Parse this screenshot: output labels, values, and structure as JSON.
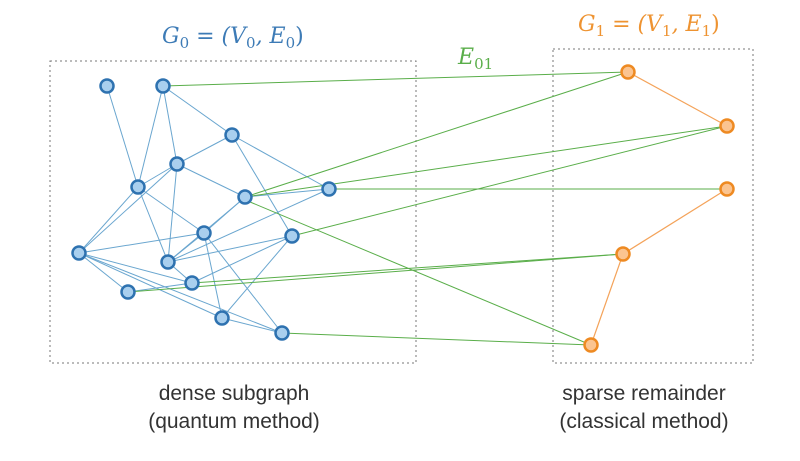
{
  "colors": {
    "g0_node_fill": "#a9cfee",
    "g0_node_stroke": "#2e72b0",
    "g0_edge": "#6aa6cf",
    "g0_label": "#3d7bb6",
    "g1_node_fill": "#fbc490",
    "g1_node_stroke": "#ee8a22",
    "g1_edge": "#f4a35a",
    "g1_label": "#ee9331",
    "cross_edge": "#5aae4a",
    "box": "#777777"
  },
  "graph0": {
    "label": {
      "base": "G",
      "sub": "0",
      "rest": " = (V",
      "vsub": "0",
      "mid": ", E",
      "esub": "0",
      "end": ")"
    },
    "caption": {
      "line1": "dense subgraph",
      "line2": "(quantum method)"
    },
    "nodes": [
      {
        "id": "a0"
      },
      {
        "id": "a1"
      },
      {
        "id": "a2"
      },
      {
        "id": "a3"
      },
      {
        "id": "a4"
      },
      {
        "id": "a5"
      },
      {
        "id": "a6"
      },
      {
        "id": "a7"
      },
      {
        "id": "a8"
      },
      {
        "id": "a9"
      },
      {
        "id": "a10"
      },
      {
        "id": "a11"
      },
      {
        "id": "a12"
      },
      {
        "id": "a13"
      },
      {
        "id": "a14"
      },
      {
        "id": "a15"
      }
    ],
    "edges": [
      [
        "a0",
        "a3"
      ],
      [
        "a1",
        "a2"
      ],
      [
        "a1",
        "a3"
      ],
      [
        "a1",
        "a4"
      ],
      [
        "a2",
        "a4"
      ],
      [
        "a2",
        "a7"
      ],
      [
        "a2",
        "a9"
      ],
      [
        "a4",
        "a3"
      ],
      [
        "a4",
        "a5"
      ],
      [
        "a4",
        "a12"
      ],
      [
        "a4",
        "a8"
      ],
      [
        "a3",
        "a6"
      ],
      [
        "a3",
        "a8"
      ],
      [
        "a3",
        "a12"
      ],
      [
        "a5",
        "a7"
      ],
      [
        "a5",
        "a6"
      ],
      [
        "a6",
        "a8"
      ],
      [
        "a6",
        "a12"
      ],
      [
        "a6",
        "a13"
      ],
      [
        "a6",
        "a14"
      ],
      [
        "a7",
        "a8"
      ],
      [
        "a8",
        "a9"
      ],
      [
        "a8",
        "a10"
      ],
      [
        "a10",
        "a12"
      ],
      [
        "a10",
        "a11"
      ],
      [
        "a12",
        "a13"
      ],
      [
        "a12",
        "a11"
      ],
      [
        "a12",
        "a14"
      ],
      [
        "a13",
        "a9"
      ],
      [
        "a13",
        "a14"
      ],
      [
        "a10",
        "a9"
      ],
      [
        "a5",
        "a15"
      ],
      [
        "a8",
        "a15"
      ]
    ]
  },
  "graph1": {
    "label": {
      "base": "G",
      "sub": "1",
      "rest": " = (V",
      "vsub": "1",
      "mid": ", E",
      "esub": "1",
      "end": ")"
    },
    "caption": {
      "line1": "sparse remainder",
      "line2": "(classical method)"
    },
    "nodes": [
      {
        "id": "b0"
      },
      {
        "id": "b1"
      },
      {
        "id": "b2"
      },
      {
        "id": "b3"
      },
      {
        "id": "b4"
      }
    ],
    "edges": [
      [
        "b0",
        "b1"
      ],
      [
        "b2",
        "b3"
      ],
      [
        "b3",
        "b4"
      ]
    ]
  },
  "cross_edges": {
    "label": {
      "base": "E",
      "sub": "01"
    },
    "edges": [
      [
        "a1",
        "b0"
      ],
      [
        "a5",
        "b0"
      ],
      [
        "a5",
        "b1"
      ],
      [
        "a9",
        "b1"
      ],
      [
        "a7",
        "b2"
      ],
      [
        "a10",
        "b3"
      ],
      [
        "a11",
        "b3"
      ],
      [
        "a14",
        "b4"
      ],
      [
        "a15",
        "b4"
      ]
    ]
  }
}
